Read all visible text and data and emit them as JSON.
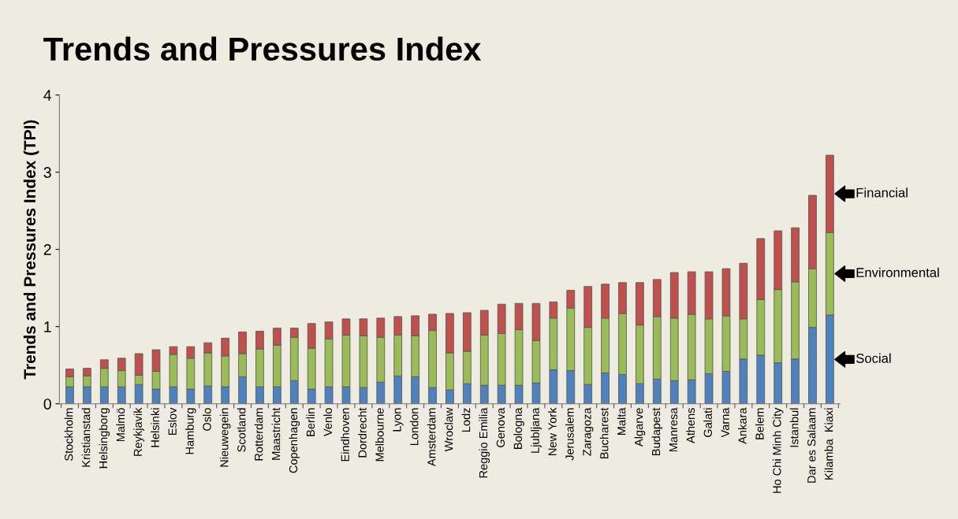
{
  "chart_data": {
    "type": "bar",
    "title": "Trends and Pressures Index",
    "ylabel": "Trends and Pressures Index (TPI)",
    "categories": [
      "Stockholm",
      "Kristianstad",
      "Helsingborg",
      "Malmö",
      "Reykjavik",
      "Helsinki",
      "Eslov",
      "Hamburg",
      "Oslo",
      "Nieuwegein",
      "Scotland",
      "Rotterdam",
      "Maastricht",
      "Copenhagen",
      "Berlin",
      "Venlo",
      "Eindhoven",
      "Dordrecht",
      "Melbourne",
      "Lyon",
      "London",
      "Amsterdam",
      "Wroclaw",
      "Lodz",
      "Reggio Emilia",
      "Genova",
      "Bologna",
      "Ljubljana",
      "New York",
      "Jerusalem",
      "Zaragoza",
      "Bucharest",
      "Malta",
      "Algarve",
      "Budapest",
      "Manresa",
      "Athens",
      "Galati",
      "Varna",
      "Ankara",
      "Belem",
      "Ho Chi Minh City",
      "Istanbul",
      "Dar es Salaam",
      "Kilamba  Kiaxi"
    ],
    "stacked": true,
    "series": [
      {
        "name": "Social",
        "color": "#4f81bd",
        "values": [
          0.22,
          0.22,
          0.22,
          0.22,
          0.25,
          0.19,
          0.22,
          0.19,
          0.23,
          0.22,
          0.35,
          0.22,
          0.22,
          0.3,
          0.19,
          0.22,
          0.22,
          0.21,
          0.28,
          0.36,
          0.35,
          0.21,
          0.18,
          0.26,
          0.24,
          0.24,
          0.24,
          0.27,
          0.44,
          0.43,
          0.25,
          0.4,
          0.38,
          0.26,
          0.32,
          0.3,
          0.31,
          0.39,
          0.42,
          0.58,
          0.63,
          0.53,
          0.58,
          0.99,
          1.15
        ]
      },
      {
        "name": "Environmental",
        "color": "#9bbb59",
        "values": [
          0.13,
          0.14,
          0.24,
          0.21,
          0.12,
          0.23,
          0.42,
          0.4,
          0.43,
          0.4,
          0.3,
          0.49,
          0.54,
          0.56,
          0.53,
          0.62,
          0.67,
          0.67,
          0.58,
          0.53,
          0.53,
          0.74,
          0.48,
          0.42,
          0.65,
          0.67,
          0.72,
          0.55,
          0.67,
          0.81,
          0.74,
          0.71,
          0.79,
          0.76,
          0.81,
          0.81,
          0.85,
          0.71,
          0.72,
          0.52,
          0.72,
          0.95,
          1.0,
          0.76,
          1.07
        ]
      },
      {
        "name": "Financial",
        "color": "#c0504d",
        "values": [
          0.1,
          0.1,
          0.11,
          0.16,
          0.28,
          0.28,
          0.1,
          0.15,
          0.13,
          0.23,
          0.28,
          0.23,
          0.22,
          0.12,
          0.32,
          0.22,
          0.21,
          0.22,
          0.25,
          0.24,
          0.26,
          0.21,
          0.51,
          0.5,
          0.32,
          0.38,
          0.34,
          0.48,
          0.21,
          0.23,
          0.53,
          0.44,
          0.4,
          0.55,
          0.48,
          0.59,
          0.55,
          0.61,
          0.61,
          0.72,
          0.79,
          0.76,
          0.7,
          0.95,
          1.0
        ]
      }
    ],
    "ylim": [
      0,
      4
    ],
    "yticks": [
      0,
      1,
      2,
      3,
      4
    ],
    "grid": false,
    "legend": false
  }
}
